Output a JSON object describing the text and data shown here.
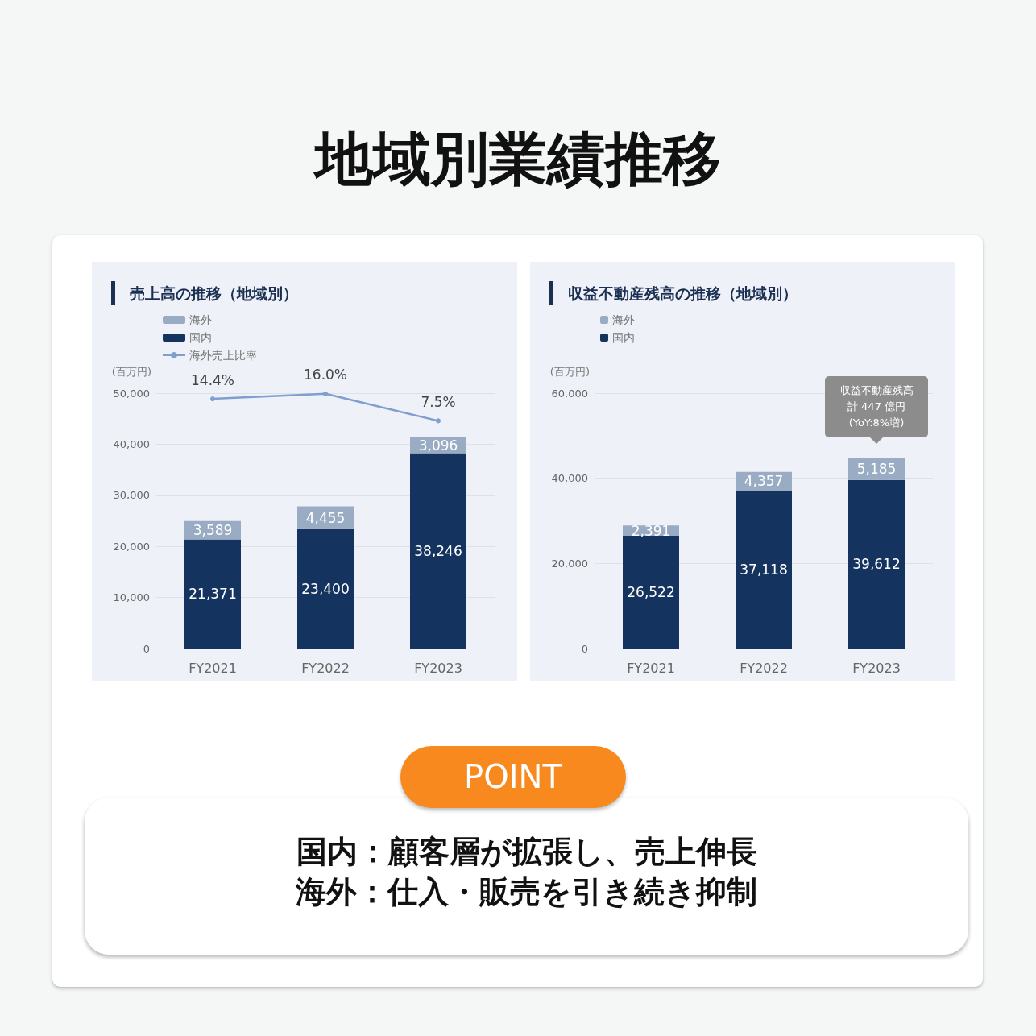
{
  "chart_data": [
    {
      "type": "bar",
      "title": "売上高の推移（地域別）",
      "ylabel": "(百万円)",
      "annotations": [
        "地域別業績推移"
      ],
      "categories": [
        "FY2021",
        "FY2022",
        "FY2023"
      ],
      "stacked": true,
      "ylim": [
        0,
        50000
      ],
      "yticks": [
        0,
        {
          "value": 10000,
          "label": "10,000"
        },
        {
          "value": 20000,
          "label": "20,000"
        },
        {
          "value": 30000,
          "label": "30,000"
        },
        {
          "value": 40000,
          "label": "40,000"
        },
        {
          "value": 50000,
          "label": "50,000"
        }
      ],
      "y2lim": [
        -64,
        16.2
      ],
      "grid": "y",
      "legend": "top left",
      "marker": "circle",
      "series": [
        {
          "name": "国内",
          "color": "#15335f",
          "values": [
            21371,
            23400,
            38246
          ],
          "value_labels": [
            "21,371",
            "23,400",
            "38,246"
          ]
        },
        {
          "name": "海外",
          "color": "#9aabc4",
          "values": [
            3589,
            4455,
            3096
          ],
          "value_labels": [
            "3,589",
            "4,455",
            "3,096"
          ]
        },
        {
          "name": "海外売上比率",
          "type": "line",
          "axis": "y2",
          "color": "#7f9fd0",
          "values": [
            14.4,
            16.0,
            7.5
          ],
          "value_labels": [
            "14.4%",
            "16.0%",
            "7.5%"
          ]
        }
      ]
    },
    {
      "type": "bar",
      "title": "収益不動産残高の推移（地域別）",
      "ylabel": "(百万円)",
      "categories": [
        "FY2021",
        "FY2022",
        "FY2023"
      ],
      "stacked": true,
      "ylim": [
        0,
        60000
      ],
      "yticks": [
        0,
        {
          "value": 20000,
          "label": "20,000"
        },
        {
          "value": 40000,
          "label": "40,000"
        },
        {
          "value": 60000,
          "label": "60,000"
        }
      ],
      "grid": "y",
      "legend": "top left",
      "annotations": [
        "収益不動産残高",
        "計 447 億円",
        "(YoY:8%増)"
      ],
      "series": [
        {
          "name": "国内",
          "color": "#15335f",
          "values": [
            26522,
            37118,
            39612
          ],
          "value_labels": [
            "26,522",
            "37,118",
            "39,612"
          ]
        },
        {
          "name": "海外",
          "color": "#9aabc4",
          "values": [
            2391,
            4357,
            5185
          ],
          "value_labels": [
            "2,391",
            "4,357",
            "5,185"
          ]
        }
      ]
    },
    {
      "type": "other",
      "title": "POINT",
      "annotations": [
        "国内：顧客層が拡張し、売上伸長",
        "海外：仕入・販売を引き続き抑制"
      ]
    }
  ]
}
